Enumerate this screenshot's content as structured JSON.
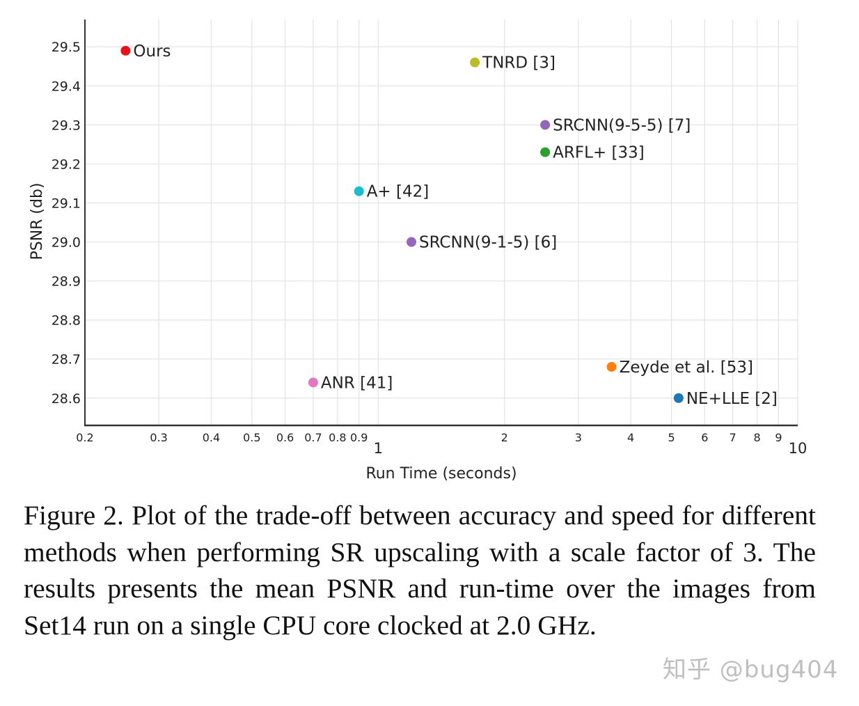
{
  "chart_data": {
    "type": "scatter",
    "xscale": "log",
    "xlabel": "Run Time (seconds)",
    "ylabel": "PSNR (db)",
    "xlim": [
      0.2,
      10
    ],
    "ylim": [
      28.53,
      29.57
    ],
    "grid": true,
    "x_ticks": [
      {
        "value": 0.2,
        "label": "0.2",
        "major": false
      },
      {
        "value": 0.3,
        "label": "0.3",
        "major": false
      },
      {
        "value": 0.4,
        "label": "0.4",
        "major": false
      },
      {
        "value": 0.5,
        "label": "0.5",
        "major": false
      },
      {
        "value": 0.6,
        "label": "0.6",
        "major": false
      },
      {
        "value": 0.7,
        "label": "0.7",
        "major": false
      },
      {
        "value": 0.8,
        "label": "0.8",
        "major": false
      },
      {
        "value": 0.9,
        "label": "0.9",
        "major": false
      },
      {
        "value": 1,
        "label": "1",
        "major": true
      },
      {
        "value": 2,
        "label": "2",
        "major": false
      },
      {
        "value": 3,
        "label": "3",
        "major": false
      },
      {
        "value": 4,
        "label": "4",
        "major": false
      },
      {
        "value": 5,
        "label": "5",
        "major": false
      },
      {
        "value": 6,
        "label": "6",
        "major": false
      },
      {
        "value": 7,
        "label": "7",
        "major": false
      },
      {
        "value": 8,
        "label": "8",
        "major": false
      },
      {
        "value": 9,
        "label": "9",
        "major": false
      },
      {
        "value": 10,
        "label": "10",
        "major": true
      }
    ],
    "y_ticks": [
      {
        "value": 28.6,
        "label": "28.6"
      },
      {
        "value": 28.7,
        "label": "28.7"
      },
      {
        "value": 28.8,
        "label": "28.8"
      },
      {
        "value": 28.9,
        "label": "28.9"
      },
      {
        "value": 29.0,
        "label": "29.0"
      },
      {
        "value": 29.1,
        "label": "29.1"
      },
      {
        "value": 29.2,
        "label": "29.2"
      },
      {
        "value": 29.3,
        "label": "29.3"
      },
      {
        "value": 29.4,
        "label": "29.4"
      },
      {
        "value": 29.5,
        "label": "29.5"
      }
    ],
    "points": [
      {
        "label": "Ours",
        "x": 0.25,
        "y": 29.49,
        "color": "#e8121a"
      },
      {
        "label": "TNRD [3]",
        "x": 1.7,
        "y": 29.46,
        "color": "#bcbd22"
      },
      {
        "label": "SRCNN(9-5-5) [7]",
        "x": 2.5,
        "y": 29.3,
        "color": "#9467bd"
      },
      {
        "label": "ARFL+ [33]",
        "x": 2.5,
        "y": 29.23,
        "color": "#2ca02c"
      },
      {
        "label": "A+ [42]",
        "x": 0.9,
        "y": 29.13,
        "color": "#17becf"
      },
      {
        "label": "SRCNN(9-1-5) [6]",
        "x": 1.2,
        "y": 29.0,
        "color": "#9467bd"
      },
      {
        "label": "Zeyde et al. [53]",
        "x": 3.6,
        "y": 28.68,
        "color": "#ff7f0e"
      },
      {
        "label": "ANR [41]",
        "x": 0.7,
        "y": 28.64,
        "color": "#e377c2"
      },
      {
        "label": "NE+LLE [2]",
        "x": 5.2,
        "y": 28.6,
        "color": "#1f77b4"
      }
    ]
  },
  "caption": "Figure 2. Plot of the trade-off between accuracy and speed for different methods when performing SR upscaling with a scale factor of 3.  The results presents the mean PSNR and run-time over the images from Set14 run on a single CPU core clocked at 2.0 GHz.",
  "watermark": "知乎 @bug404"
}
